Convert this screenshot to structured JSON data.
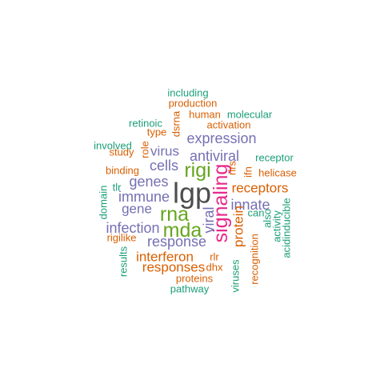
{
  "palette": {
    "teal": "#1b9e77",
    "orange": "#d95f02",
    "purple": "#7570b3",
    "magenta": "#e7298a",
    "green": "#66a61e",
    "dark": "#4d4d4d"
  },
  "words": [
    {
      "text": "lgp",
      "weight": 10,
      "color": "dark",
      "vertical": false
    },
    {
      "text": "rigi",
      "weight": 7,
      "color": "green",
      "vertical": false
    },
    {
      "text": "rna",
      "weight": 7,
      "color": "green",
      "vertical": false
    },
    {
      "text": "mda",
      "weight": 7,
      "color": "green",
      "vertical": false
    },
    {
      "text": "signaling",
      "weight": 7,
      "color": "magenta",
      "vertical": true
    },
    {
      "text": "expression",
      "weight": 5,
      "color": "purple",
      "vertical": false
    },
    {
      "text": "antiviral",
      "weight": 5,
      "color": "purple",
      "vertical": false
    },
    {
      "text": "response",
      "weight": 5,
      "color": "purple",
      "vertical": false
    },
    {
      "text": "cells",
      "weight": 5,
      "color": "purple",
      "vertical": false
    },
    {
      "text": "genes",
      "weight": 5,
      "color": "purple",
      "vertical": false
    },
    {
      "text": "immune",
      "weight": 5,
      "color": "purple",
      "vertical": false
    },
    {
      "text": "infection",
      "weight": 5,
      "color": "purple",
      "vertical": false
    },
    {
      "text": "innate",
      "weight": 5,
      "color": "purple",
      "vertical": false
    },
    {
      "text": "viral",
      "weight": 5,
      "color": "purple",
      "vertical": true
    },
    {
      "text": "gene",
      "weight": 4,
      "color": "purple",
      "vertical": false
    },
    {
      "text": "virus",
      "weight": 4,
      "color": "purple",
      "vertical": false
    },
    {
      "text": "receptors",
      "weight": 4,
      "color": "orange",
      "vertical": false
    },
    {
      "text": "interferon",
      "weight": 4,
      "color": "orange",
      "vertical": false
    },
    {
      "text": "responses",
      "weight": 4,
      "color": "orange",
      "vertical": false
    },
    {
      "text": "protein",
      "weight": 4,
      "color": "orange",
      "vertical": true
    },
    {
      "text": "activation",
      "weight": 3,
      "color": "orange",
      "vertical": false
    },
    {
      "text": "production",
      "weight": 3,
      "color": "orange",
      "vertical": false
    },
    {
      "text": "human",
      "weight": 3,
      "color": "orange",
      "vertical": false
    },
    {
      "text": "type",
      "weight": 3,
      "color": "orange",
      "vertical": false
    },
    {
      "text": "helicase",
      "weight": 3,
      "color": "orange",
      "vertical": false
    },
    {
      "text": "binding",
      "weight": 3,
      "color": "orange",
      "vertical": false
    },
    {
      "text": "study",
      "weight": 3,
      "color": "orange",
      "vertical": false
    },
    {
      "text": "rigilike",
      "weight": 3,
      "color": "orange",
      "vertical": false
    },
    {
      "text": "proteins",
      "weight": 3,
      "color": "orange",
      "vertical": false
    },
    {
      "text": "rlr",
      "weight": 3,
      "color": "orange",
      "vertical": false
    },
    {
      "text": "dhx",
      "weight": 3,
      "color": "orange",
      "vertical": false
    },
    {
      "text": "recognition",
      "weight": 3,
      "color": "orange",
      "vertical": true
    },
    {
      "text": "dsrna",
      "weight": 3,
      "color": "orange",
      "vertical": true
    },
    {
      "text": "rlrs",
      "weight": 3,
      "color": "orange",
      "vertical": true
    },
    {
      "text": "role",
      "weight": 3,
      "color": "orange",
      "vertical": true
    },
    {
      "text": "ifn",
      "weight": 3,
      "color": "orange",
      "vertical": true
    },
    {
      "text": "including",
      "weight": 3,
      "color": "teal",
      "vertical": false
    },
    {
      "text": "molecular",
      "weight": 3,
      "color": "teal",
      "vertical": false
    },
    {
      "text": "retinoic",
      "weight": 3,
      "color": "teal",
      "vertical": false
    },
    {
      "text": "involved",
      "weight": 3,
      "color": "teal",
      "vertical": false
    },
    {
      "text": "receptor",
      "weight": 3,
      "color": "teal",
      "vertical": false
    },
    {
      "text": "tlr",
      "weight": 3,
      "color": "teal",
      "vertical": false
    },
    {
      "text": "can",
      "weight": 3,
      "color": "teal",
      "vertical": false
    },
    {
      "text": "pathway",
      "weight": 3,
      "color": "teal",
      "vertical": false
    },
    {
      "text": "domain",
      "weight": 3,
      "color": "teal",
      "vertical": true
    },
    {
      "text": "results",
      "weight": 3,
      "color": "teal",
      "vertical": true
    },
    {
      "text": "viruses",
      "weight": 3,
      "color": "teal",
      "vertical": true
    },
    {
      "text": "also",
      "weight": 3,
      "color": "teal",
      "vertical": true
    },
    {
      "text": "activity",
      "weight": 3,
      "color": "teal",
      "vertical": true
    },
    {
      "text": "acidinducible",
      "weight": 3,
      "color": "teal",
      "vertical": true
    }
  ]
}
